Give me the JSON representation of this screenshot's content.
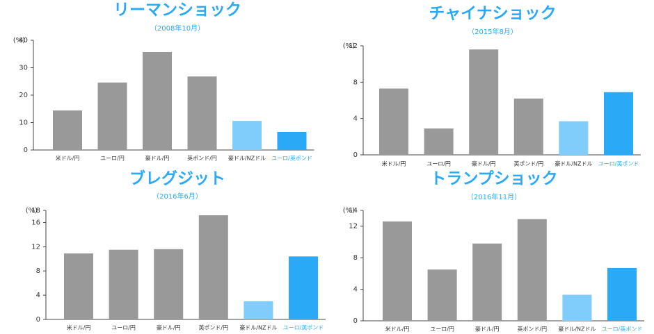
{
  "chart_data": [
    {
      "type": "bar",
      "title": "リーマンショック",
      "subtitle": "（2008年10月）",
      "y_label": "(%)",
      "categories": [
        "米ドル/円",
        "ユーロ/円",
        "豪ドル/円",
        "英ポンド/円",
        "豪ドル/NZドル",
        "ユーロ/英ポンド"
      ],
      "values": [
        14.4,
        24.6,
        35.7,
        26.8,
        10.6,
        6.6
      ],
      "colors": [
        "#999999",
        "#999999",
        "#999999",
        "#999999",
        "#80cdfb",
        "#2aa9f6"
      ],
      "ylim": [
        0,
        40
      ],
      "yticks": [
        0,
        10,
        20,
        30,
        40
      ]
    },
    {
      "type": "bar",
      "title": "チャイナショック",
      "subtitle": "（2015年8月）",
      "y_label": "(%)",
      "categories": [
        "米ドル/円",
        "ユーロ/円",
        "豪ドル/円",
        "英ポンド/円",
        "豪ドル/NZドル",
        "ユーロ/英ポンド"
      ],
      "values": [
        7.3,
        2.9,
        11.6,
        6.2,
        3.7,
        6.9
      ],
      "colors": [
        "#999999",
        "#999999",
        "#999999",
        "#999999",
        "#80cdfb",
        "#2aa9f6"
      ],
      "ylim": [
        0,
        12
      ],
      "yticks": [
        0,
        4,
        8,
        12
      ]
    },
    {
      "type": "bar",
      "title": "ブレグジット",
      "subtitle": "（2016年6月）",
      "y_label": "(%)",
      "categories": [
        "米ドル/円",
        "ユーロ/円",
        "豪ドル/円",
        "英ポンド/円",
        "豪ドル/NZドル",
        "ユーロ/英ポンド"
      ],
      "values": [
        10.9,
        11.5,
        11.6,
        17.2,
        3.0,
        10.4
      ],
      "colors": [
        "#999999",
        "#999999",
        "#999999",
        "#999999",
        "#80cdfb",
        "#2aa9f6"
      ],
      "ylim": [
        0,
        18
      ],
      "yticks": [
        0,
        4,
        8,
        12,
        16,
        18
      ]
    },
    {
      "type": "bar",
      "title": "トランプショック",
      "subtitle": "（2016年11月）",
      "y_label": "(%)",
      "categories": [
        "米ドル/円",
        "ユーロ/円",
        "豪ドル/円",
        "英ポンド/円",
        "豪ドル/NZドル",
        "ユーロ/英ポンド"
      ],
      "values": [
        12.6,
        6.5,
        9.8,
        12.9,
        3.3,
        6.7
      ],
      "colors": [
        "#999999",
        "#999999",
        "#999999",
        "#999999",
        "#80cdfb",
        "#2aa9f6"
      ],
      "ylim": [
        0,
        14
      ],
      "yticks": [
        0,
        4,
        8,
        12,
        14
      ]
    }
  ]
}
